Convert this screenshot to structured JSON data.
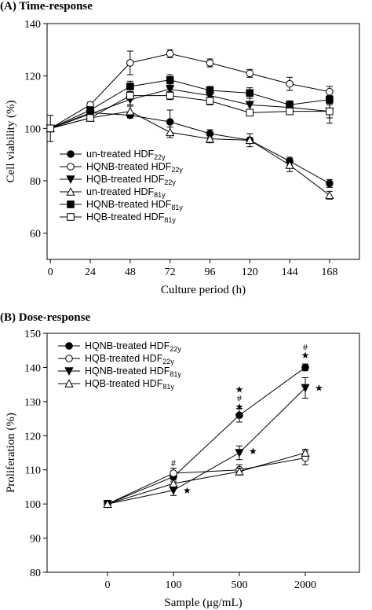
{
  "chart_data": [
    {
      "type": "line",
      "title": "(A) Time-response",
      "xlabel": "Culture period (h)",
      "ylabel": "Cell viability (%)",
      "x": [
        0,
        24,
        48,
        72,
        96,
        120,
        144,
        168
      ],
      "x_ticks": [
        "0",
        "24",
        "48",
        "72",
        "96",
        "120",
        "144",
        "168"
      ],
      "ylim": [
        50,
        140
      ],
      "y_ticks": [
        "60",
        "80",
        "100",
        "120",
        "140"
      ],
      "legend_position": "lower-left",
      "series": [
        {
          "name": "un-treated HDF",
          "sub": "22y",
          "marker": "circle-filled",
          "values": [
            100,
            106,
            105,
            102.5,
            98,
            95.5,
            87.5,
            79
          ],
          "errors": [
            5,
            1,
            1,
            4.5,
            1.5,
            2.5,
            1.5,
            1.5
          ]
        },
        {
          "name": "HQNB-treated HDF",
          "sub": "22y",
          "marker": "circle-open",
          "values": [
            100,
            109,
            125,
            128.5,
            125,
            121,
            117,
            114
          ],
          "errors": [
            1,
            1,
            4.5,
            1.5,
            1.5,
            1.5,
            2.5,
            2
          ]
        },
        {
          "name": "HQB-treated HDF",
          "sub": "22y",
          "marker": "triangle-down-filled",
          "values": [
            100,
            105.5,
            111,
            115,
            112.5,
            109,
            108,
            106.5
          ],
          "errors": [
            1,
            1,
            2,
            2,
            1.5,
            2.5,
            1.5,
            2.5
          ]
        },
        {
          "name": "un-treated HDF",
          "sub": "81y",
          "marker": "triangle-up-open",
          "values": [
            100,
            104,
            106.5,
            98.5,
            96,
            95.5,
            86,
            74.5
          ],
          "errors": [
            1,
            1,
            2,
            2,
            1.5,
            1,
            2.5,
            1.5
          ]
        },
        {
          "name": "HQNB-treated HDF",
          "sub": "81y",
          "marker": "square-filled",
          "values": [
            100,
            107,
            116,
            118.5,
            114.5,
            113.5,
            109,
            111
          ],
          "errors": [
            1,
            1,
            2,
            2,
            1.5,
            2,
            1.5,
            1.5
          ]
        },
        {
          "name": "HQB-treated HDF",
          "sub": "81y",
          "marker": "square-open",
          "values": [
            100,
            104,
            112.5,
            112.5,
            110.5,
            106,
            106.5,
            106.5
          ],
          "errors": [
            1,
            1,
            1.5,
            1.5,
            1.5,
            1,
            1,
            4.5
          ]
        }
      ]
    },
    {
      "type": "line",
      "title": "(B) Dose-response",
      "xlabel": "Sample (μg/mL)",
      "ylabel": "Proliferation (%)",
      "categories": [
        "0",
        "100",
        "500",
        "2000"
      ],
      "ylim": [
        80,
        150
      ],
      "y_ticks": [
        "80",
        "90",
        "100",
        "110",
        "120",
        "130",
        "140",
        "150"
      ],
      "legend_position": "top-left",
      "series": [
        {
          "name": "HQNB-treated HDF",
          "sub": "22y",
          "marker": "circle-filled",
          "values": [
            100,
            108,
            126,
            140
          ],
          "errors": [
            1,
            1.5,
            2,
            1
          ]
        },
        {
          "name": "HQB-treated HDF",
          "sub": "22y",
          "marker": "circle-open",
          "values": [
            100,
            109,
            110,
            113.5
          ],
          "errors": [
            1,
            1.5,
            1.5,
            2
          ]
        },
        {
          "name": "HQNB-treated HDF",
          "sub": "81y",
          "marker": "triangle-down-filled",
          "values": [
            100,
            104,
            115,
            134
          ],
          "errors": [
            1,
            1.5,
            2,
            3
          ]
        },
        {
          "name": "HQB-treated HDF",
          "sub": "81y",
          "marker": "triangle-up-open",
          "values": [
            100,
            106,
            109.5,
            115
          ],
          "errors": [
            1,
            1,
            1,
            1
          ]
        }
      ],
      "annotations": [
        {
          "text": "#",
          "category": "100",
          "y": 112
        },
        {
          "text": "#",
          "category": "500",
          "y": 131
        },
        {
          "text": "★",
          "category": "500",
          "y": 128.5
        },
        {
          "text": "★",
          "category": "500",
          "y": 133.5
        },
        {
          "text": "★",
          "category": "500",
          "y": 115.5,
          "right_of_point": true
        },
        {
          "text": "#",
          "category": "2000",
          "y": 146
        },
        {
          "text": "★",
          "category": "2000",
          "y": 143.5
        },
        {
          "text": "★",
          "category": "2000",
          "y": 134,
          "right_of_point": true
        },
        {
          "text": "★",
          "category": "100",
          "y": 104,
          "right_of_point": true
        }
      ]
    }
  ]
}
